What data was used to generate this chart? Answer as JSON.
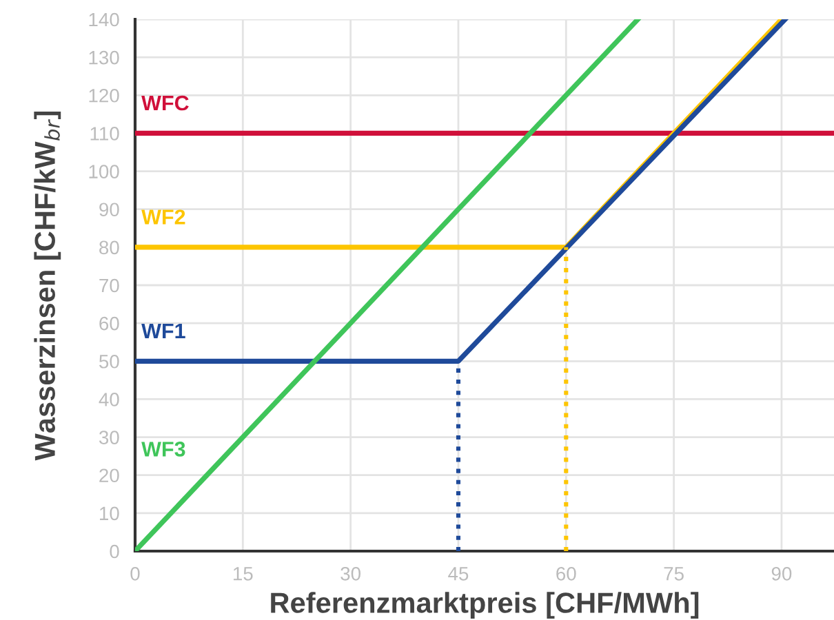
{
  "chart_data": {
    "type": "line",
    "xlabel": "Referenzmarktpreis [CHF/MWh]",
    "ylabel": "Wasserzinsen [CHF/kW$_{br}$]",
    "xlim": [
      0,
      97.3
    ],
    "xticks": [
      0,
      15,
      30,
      45,
      60,
      75,
      90
    ],
    "ylim": [
      0,
      140
    ],
    "yticks": [
      0,
      10,
      20,
      30,
      40,
      50,
      60,
      70,
      80,
      90,
      100,
      110,
      120,
      130,
      140
    ],
    "grid": true,
    "legend": false,
    "marker": "none",
    "series": [
      {
        "name": "WFC",
        "color": "#d0103a",
        "x": [
          0,
          97.3
        ],
        "values": [
          110,
          110
        ]
      },
      {
        "name": "WF2",
        "color": "#fdc500",
        "x": [
          0,
          60,
          90
        ],
        "values": [
          80,
          80,
          140
        ]
      },
      {
        "name": "WF1",
        "color": "#1f4a9a",
        "x": [
          0,
          45,
          90.5
        ],
        "values": [
          50,
          50,
          140
        ]
      },
      {
        "name": "WF3",
        "color": "#3fc55a",
        "x": [
          0,
          70
        ],
        "values": [
          0,
          140
        ]
      },
      {
        "color": "#1f4a9a",
        "x": [
          45,
          45
        ],
        "values": [
          0,
          50
        ],
        "line_style": "dotted"
      },
      {
        "color": "#fdc500",
        "x": [
          60,
          60
        ],
        "values": [
          0,
          80
        ],
        "line_style": "dotted"
      }
    ]
  }
}
